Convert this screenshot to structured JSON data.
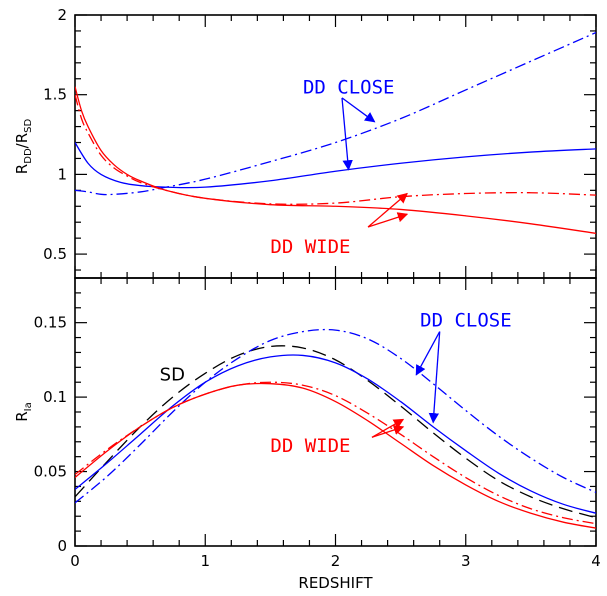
{
  "chart_data": [
    {
      "type": "line",
      "panel": "top",
      "xlabel": "",
      "ylabel": {
        "main": "R",
        "sub1": "DD",
        "slash": "/R",
        "sub2": "SD"
      },
      "xlim": [
        0,
        4
      ],
      "ylim": [
        0.35,
        2.0
      ],
      "x_ticks": [
        "0",
        "1",
        "2",
        "3",
        "4"
      ],
      "y_ticks": [
        {
          "v": 0.5,
          "label": "0.5"
        },
        {
          "v": 1.0,
          "label": "1"
        },
        {
          "v": 1.5,
          "label": "1.5"
        },
        {
          "v": 2.0,
          "label": "2"
        }
      ],
      "series": [
        {
          "id": "close-solid",
          "color": "#0000ff",
          "dash": "solid",
          "x": [
            0,
            0.1,
            0.2,
            0.35,
            0.5,
            0.7,
            1.0,
            1.5,
            2.0,
            2.5,
            3.0,
            3.5,
            4.0
          ],
          "y": [
            1.2,
            1.07,
            1.0,
            0.95,
            0.93,
            0.92,
            0.92,
            0.96,
            1.02,
            1.07,
            1.11,
            1.14,
            1.16
          ]
        },
        {
          "id": "close-dashdot",
          "color": "#0000ff",
          "dash": "dashdot",
          "x": [
            0,
            0.1,
            0.2,
            0.3,
            0.5,
            0.7,
            1.0,
            1.5,
            2.0,
            2.5,
            3.0,
            3.5,
            4.0
          ],
          "y": [
            0.9,
            0.89,
            0.875,
            0.875,
            0.89,
            0.92,
            0.97,
            1.08,
            1.2,
            1.35,
            1.53,
            1.71,
            1.89
          ]
        },
        {
          "id": "wide-solid",
          "color": "#ff0000",
          "dash": "solid",
          "x": [
            0,
            0.05,
            0.1,
            0.2,
            0.3,
            0.4,
            0.5,
            0.7,
            1.0,
            1.5,
            2.0,
            2.5,
            3.0,
            3.5,
            4.0
          ],
          "y": [
            1.55,
            1.4,
            1.3,
            1.15,
            1.06,
            1.0,
            0.96,
            0.9,
            0.85,
            0.81,
            0.8,
            0.78,
            0.74,
            0.69,
            0.63
          ]
        },
        {
          "id": "wide-dashdot",
          "color": "#ff0000",
          "dash": "dashdot",
          "x": [
            0,
            0.05,
            0.1,
            0.2,
            0.3,
            0.4,
            0.5,
            0.7,
            1.0,
            1.5,
            2.0,
            2.5,
            3.0,
            3.5,
            4.0
          ],
          "y": [
            1.5,
            1.35,
            1.26,
            1.12,
            1.04,
            0.99,
            0.95,
            0.9,
            0.85,
            0.815,
            0.82,
            0.86,
            0.88,
            0.885,
            0.87
          ]
        }
      ],
      "annotations": [
        {
          "text": "DD CLOSE",
          "color": "#0000ff",
          "at": [
            1.75,
            1.55
          ],
          "arrows": [
            [
              2.05,
              1.48,
              2.3,
              1.33
            ],
            [
              2.05,
              1.48,
              2.1,
              1.03
            ]
          ]
        },
        {
          "text": "DD WIDE",
          "color": "#ff0000",
          "at": [
            1.5,
            0.55
          ],
          "arrows": [
            [
              2.25,
              0.67,
              2.55,
              0.88
            ],
            [
              2.25,
              0.67,
              2.55,
              0.75
            ]
          ]
        }
      ]
    },
    {
      "type": "line",
      "panel": "bottom",
      "xlabel": "REDSHIFT",
      "ylabel": {
        "main": "R",
        "sub1": "Ia"
      },
      "xlim": [
        0,
        4
      ],
      "ylim": [
        0,
        0.18
      ],
      "x_ticks": [
        "0",
        "1",
        "2",
        "3",
        "4"
      ],
      "y_ticks": [
        {
          "v": 0,
          "label": "0"
        },
        {
          "v": 0.05,
          "label": "0.05"
        },
        {
          "v": 0.1,
          "label": "0.1"
        },
        {
          "v": 0.15,
          "label": "0.15"
        }
      ],
      "series": [
        {
          "id": "sd-dashed",
          "color": "#000000",
          "dash": "dashed",
          "x": [
            0,
            0.25,
            0.5,
            0.75,
            1.0,
            1.25,
            1.5,
            1.75,
            2.0,
            2.25,
            2.5,
            2.75,
            3.0,
            3.25,
            3.5,
            3.75,
            4.0
          ],
          "y": [
            0.033,
            0.057,
            0.08,
            0.1,
            0.116,
            0.128,
            0.134,
            0.133,
            0.125,
            0.111,
            0.094,
            0.076,
            0.059,
            0.044,
            0.033,
            0.025,
            0.019
          ]
        },
        {
          "id": "close-solid",
          "color": "#0000ff",
          "dash": "solid",
          "x": [
            0,
            0.25,
            0.5,
            0.75,
            1.0,
            1.25,
            1.5,
            1.75,
            2.0,
            2.25,
            2.5,
            2.75,
            3.0,
            3.25,
            3.5,
            3.75,
            4.0
          ],
          "y": [
            0.038,
            0.056,
            0.075,
            0.094,
            0.11,
            0.121,
            0.127,
            0.128,
            0.123,
            0.112,
            0.097,
            0.08,
            0.064,
            0.049,
            0.037,
            0.028,
            0.022
          ]
        },
        {
          "id": "close-dashdot",
          "color": "#0000ff",
          "dash": "dashdot",
          "x": [
            0,
            0.25,
            0.5,
            0.75,
            1.0,
            1.25,
            1.5,
            1.75,
            2.0,
            2.25,
            2.5,
            2.75,
            3.0,
            3.25,
            3.5,
            3.75,
            4.0
          ],
          "y": [
            0.029,
            0.047,
            0.068,
            0.09,
            0.11,
            0.126,
            0.138,
            0.144,
            0.145,
            0.139,
            0.126,
            0.109,
            0.091,
            0.074,
            0.059,
            0.046,
            0.036
          ]
        },
        {
          "id": "wide-solid",
          "color": "#ff0000",
          "dash": "solid",
          "x": [
            0,
            0.25,
            0.5,
            0.75,
            1.0,
            1.25,
            1.5,
            1.75,
            2.0,
            2.25,
            2.5,
            2.75,
            3.0,
            3.25,
            3.5,
            3.75,
            4.0
          ],
          "y": [
            0.046,
            0.064,
            0.08,
            0.093,
            0.102,
            0.108,
            0.109,
            0.106,
            0.097,
            0.084,
            0.069,
            0.054,
            0.041,
            0.03,
            0.022,
            0.016,
            0.012
          ]
        },
        {
          "id": "wide-dashdot",
          "color": "#ff0000",
          "dash": "dashdot",
          "x": [
            0,
            0.25,
            0.5,
            0.75,
            1.0,
            1.25,
            1.5,
            1.75,
            2.0,
            2.25,
            2.5,
            2.75,
            3.0,
            3.25,
            3.5,
            3.75,
            4.0
          ],
          "y": [
            0.048,
            0.065,
            0.08,
            0.093,
            0.102,
            0.108,
            0.11,
            0.108,
            0.101,
            0.089,
            0.075,
            0.06,
            0.046,
            0.034,
            0.025,
            0.019,
            0.015
          ]
        }
      ],
      "annotations": [
        {
          "text": "SD",
          "color": "#000000",
          "at": [
            0.65,
            0.116
          ],
          "arrows": []
        },
        {
          "text": "DD CLOSE",
          "color": "#0000ff",
          "at": [
            2.65,
            0.152
          ],
          "arrows": [
            [
              2.8,
              0.144,
              2.62,
              0.115
            ],
            [
              2.8,
              0.144,
              2.75,
              0.083
            ]
          ]
        },
        {
          "text": "DD WIDE",
          "color": "#ff0000",
          "at": [
            1.5,
            0.068
          ],
          "arrows": [
            [
              2.28,
              0.073,
              2.52,
              0.085
            ],
            [
              2.28,
              0.073,
              2.52,
              0.08
            ]
          ]
        }
      ]
    }
  ]
}
